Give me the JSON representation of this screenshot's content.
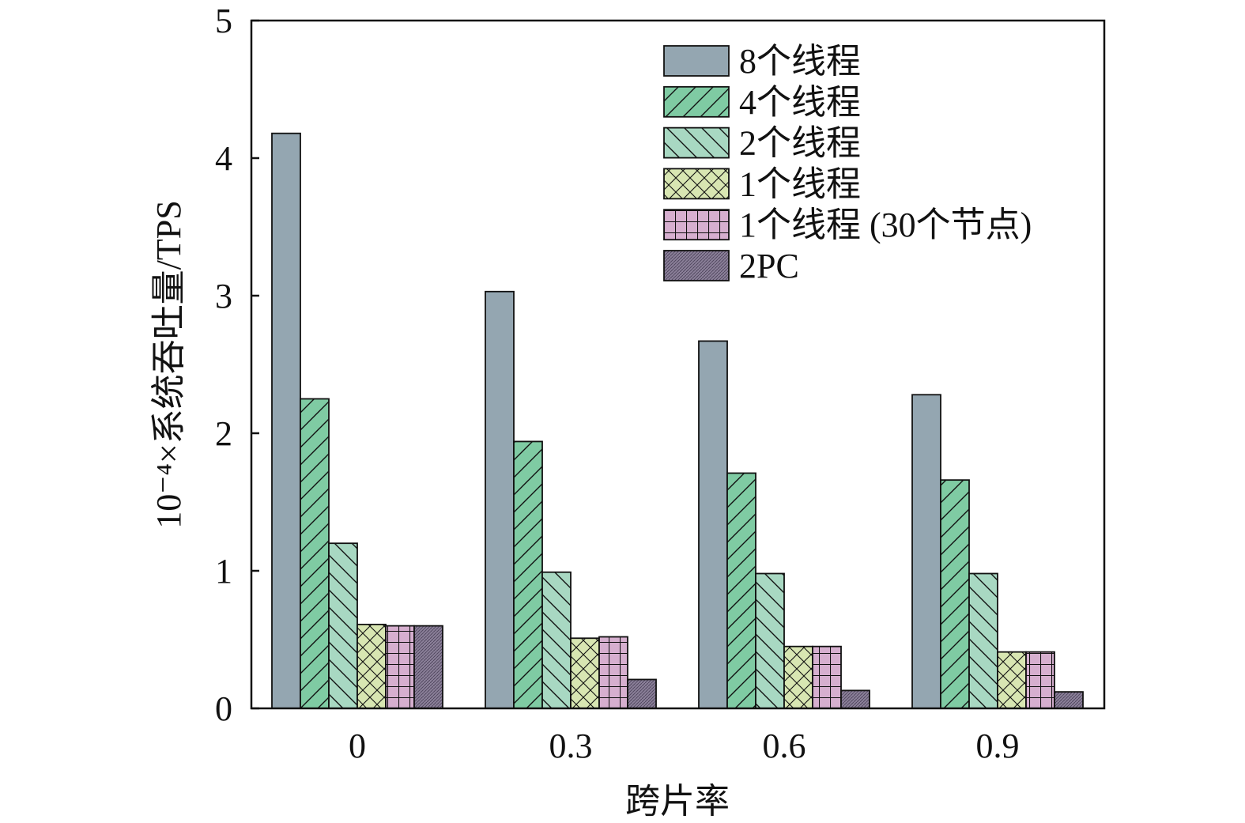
{
  "chart_data": {
    "type": "bar",
    "title": "",
    "xlabel": "跨片率",
    "ylabel": "10⁻⁴×系统吞吐量/TPS",
    "ylim": [
      0,
      5
    ],
    "yticks": [
      "0",
      "1",
      "2",
      "3",
      "4",
      "5"
    ],
    "categories": [
      "0",
      "0.3",
      "0.6",
      "0.9"
    ],
    "legend_position": "top-right",
    "series": [
      {
        "name": "8个线程",
        "values": [
          4.18,
          3.03,
          2.67,
          2.28
        ],
        "color": "#94a6b1",
        "pattern": "solid"
      },
      {
        "name": "4个线程",
        "values": [
          2.25,
          1.94,
          1.71,
          1.66
        ],
        "color": "#7fcba3",
        "pattern": "diag-fwd"
      },
      {
        "name": "2个线程",
        "values": [
          1.2,
          0.99,
          0.98,
          0.98
        ],
        "color": "#a8d8c2",
        "pattern": "diag-back"
      },
      {
        "name": "1个线程",
        "values": [
          0.61,
          0.51,
          0.45,
          0.41
        ],
        "color": "#d8e6b2",
        "pattern": "cross"
      },
      {
        "name": "1个线程 (30个节点)",
        "values": [
          0.6,
          0.52,
          0.45,
          0.41
        ],
        "color": "#d6afcf",
        "pattern": "grid"
      },
      {
        "name": "2PC",
        "values": [
          0.6,
          0.21,
          0.13,
          0.12
        ],
        "color": "#8a7f98",
        "pattern": "dots"
      }
    ]
  }
}
